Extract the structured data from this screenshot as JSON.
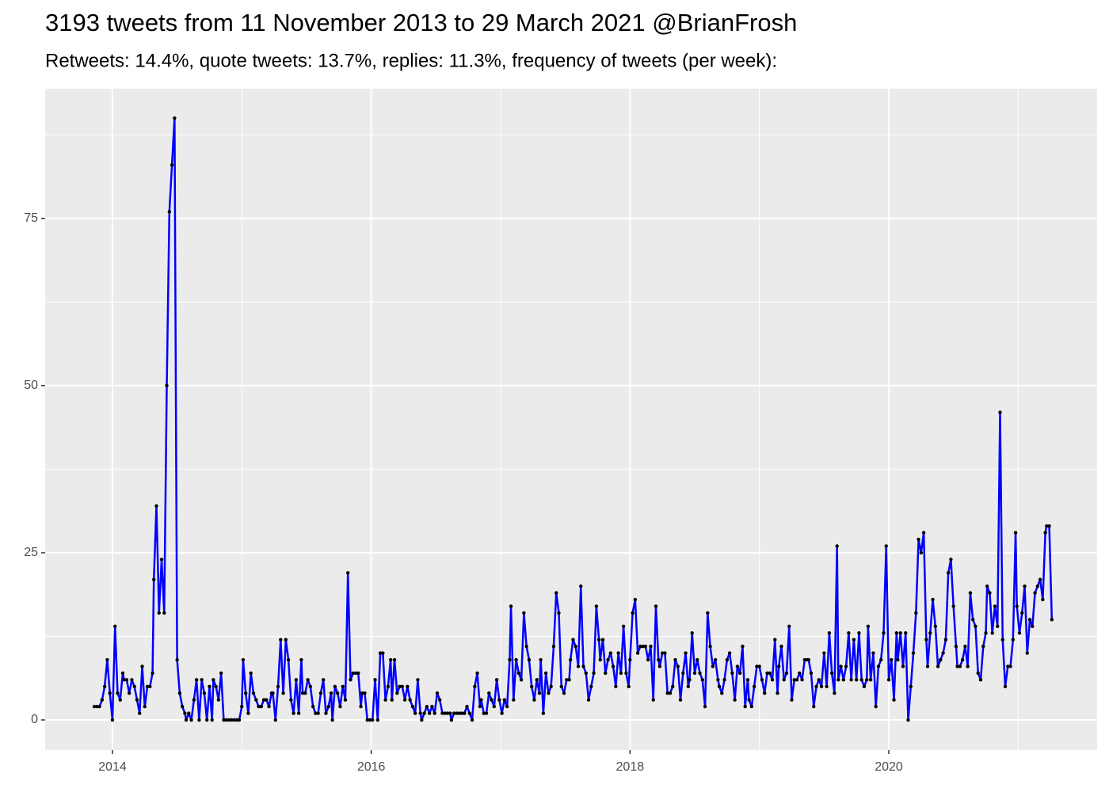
{
  "chart_data": {
    "type": "line",
    "title": "3193 tweets from 11 November 2013 to 29 March 2021 @BrianFrosh",
    "subtitle": "Retweets: 14.4%, quote tweets: 13.7%, replies: 11.3%, frequency of tweets (per week):",
    "color": "#0000ff",
    "point_color": "#000000",
    "grid": true,
    "xlim": [
      2013.48,
      2021.61
    ],
    "ylim": [
      -4.5,
      94.4
    ],
    "xticks": [
      2014,
      2016,
      2018,
      2020
    ],
    "yticks": [
      0,
      25,
      50,
      75
    ],
    "minor_xticks": [
      2015,
      2017,
      2019,
      2021
    ],
    "minor_yticks": [
      12.5,
      37.5,
      62.5,
      87.5
    ],
    "x": [
      2013.86,
      2013.88,
      2013.9,
      2013.92,
      2013.94,
      2013.96,
      2013.98,
      2014.0,
      2014.02,
      2014.04,
      2014.06,
      2014.08,
      2014.09,
      2014.11,
      2014.13,
      2014.15,
      2014.17,
      2014.19,
      2014.21,
      2014.23,
      2014.25,
      2014.27,
      2014.29,
      2014.31,
      2014.32,
      2014.34,
      2014.36,
      2014.38,
      2014.4,
      2014.42,
      2014.44,
      2014.46,
      2014.48,
      2014.5,
      2014.52,
      2014.54,
      2014.56,
      2014.57,
      2014.59,
      2014.61,
      2014.63,
      2014.65,
      2014.67,
      2014.69,
      2014.71,
      2014.73,
      2014.75,
      2014.77,
      2014.78,
      2014.8,
      2014.82,
      2014.84,
      2014.86,
      2014.88,
      2014.9,
      2014.92,
      2014.94,
      2014.96,
      2014.98,
      2015.0,
      2015.01,
      2015.03,
      2015.05,
      2015.07,
      2015.09,
      2015.11,
      2015.13,
      2015.15,
      2015.17,
      2015.19,
      2015.21,
      2015.23,
      2015.24,
      2015.26,
      2015.28,
      2015.3,
      2015.32,
      2015.34,
      2015.36,
      2015.38,
      2015.4,
      2015.42,
      2015.44,
      2015.46,
      2015.47,
      2015.49,
      2015.51,
      2015.53,
      2015.55,
      2015.57,
      2015.59,
      2015.61,
      2015.63,
      2015.65,
      2015.67,
      2015.69,
      2015.7,
      2015.72,
      2015.74,
      2015.76,
      2015.78,
      2015.8,
      2015.82,
      2015.84,
      2015.86,
      2015.88,
      2015.9,
      2015.92,
      2015.93,
      2015.95,
      2015.97,
      2015.99,
      2016.01,
      2016.03,
      2016.05,
      2016.07,
      2016.09,
      2016.11,
      2016.13,
      2016.15,
      2016.16,
      2016.18,
      2016.2,
      2016.22,
      2016.24,
      2016.26,
      2016.28,
      2016.3,
      2016.32,
      2016.34,
      2016.36,
      2016.38,
      2016.39,
      2016.41,
      2016.43,
      2016.45,
      2016.47,
      2016.49,
      2016.51,
      2016.53,
      2016.55,
      2016.57,
      2016.59,
      2016.61,
      2016.62,
      2016.64,
      2016.66,
      2016.68,
      2016.7,
      2016.72,
      2016.74,
      2016.76,
      2016.78,
      2016.8,
      2016.82,
      2016.84,
      2016.85,
      2016.87,
      2016.89,
      2016.91,
      2016.93,
      2016.95,
      2016.97,
      2016.99,
      2017.01,
      2017.03,
      2017.05,
      2017.07,
      2017.08,
      2017.1,
      2017.12,
      2017.14,
      2017.16,
      2017.18,
      2017.2,
      2017.22,
      2017.24,
      2017.26,
      2017.28,
      2017.3,
      2017.31,
      2017.33,
      2017.35,
      2017.37,
      2017.39,
      2017.41,
      2017.43,
      2017.45,
      2017.47,
      2017.49,
      2017.51,
      2017.53,
      2017.54,
      2017.56,
      2017.58,
      2017.6,
      2017.62,
      2017.64,
      2017.66,
      2017.68,
      2017.7,
      2017.72,
      2017.74,
      2017.76,
      2017.77,
      2017.79,
      2017.81,
      2017.83,
      2017.85,
      2017.87,
      2017.89,
      2017.91,
      2017.93,
      2017.95,
      2017.97,
      2017.99,
      2018.0,
      2018.02,
      2018.04,
      2018.06,
      2018.08,
      2018.1,
      2018.12,
      2018.14,
      2018.16,
      2018.18,
      2018.2,
      2018.22,
      2018.23,
      2018.25,
      2018.27,
      2018.29,
      2018.31,
      2018.33,
      2018.35,
      2018.37,
      2018.39,
      2018.41,
      2018.43,
      2018.45,
      2018.46,
      2018.48,
      2018.5,
      2018.52,
      2018.54,
      2018.56,
      2018.58,
      2018.6,
      2018.62,
      2018.64,
      2018.66,
      2018.68,
      2018.69,
      2018.71,
      2018.73,
      2018.75,
      2018.77,
      2018.79,
      2018.81,
      2018.83,
      2018.85,
      2018.87,
      2018.89,
      2018.91,
      2018.92,
      2018.94,
      2018.96,
      2018.98,
      2019.0,
      2019.02,
      2019.04,
      2019.06,
      2019.08,
      2019.1,
      2019.12,
      2019.14,
      2019.15,
      2019.17,
      2019.19,
      2019.21,
      2019.23,
      2019.25,
      2019.27,
      2019.29,
      2019.31,
      2019.33,
      2019.35,
      2019.37,
      2019.38,
      2019.4,
      2019.42,
      2019.44,
      2019.46,
      2019.48,
      2019.5,
      2019.52,
      2019.54,
      2019.56,
      2019.58,
      2019.6,
      2019.61,
      2019.63,
      2019.65,
      2019.67,
      2019.69,
      2019.71,
      2019.73,
      2019.75,
      2019.77,
      2019.79,
      2019.81,
      2019.83,
      2019.84,
      2019.86,
      2019.88,
      2019.9,
      2019.92,
      2019.94,
      2019.96,
      2019.98,
      2020.0,
      2020.02,
      2020.04,
      2020.06,
      2020.07,
      2020.09,
      2020.11,
      2020.13,
      2020.15,
      2020.17,
      2020.19,
      2020.21,
      2020.23,
      2020.25,
      2020.27,
      2020.29,
      2020.3,
      2020.32,
      2020.34,
      2020.36,
      2020.38,
      2020.4,
      2020.42,
      2020.44,
      2020.46,
      2020.48,
      2020.5,
      2020.52,
      2020.53,
      2020.55,
      2020.57,
      2020.59,
      2020.61,
      2020.63,
      2020.65,
      2020.67,
      2020.69,
      2020.71,
      2020.73,
      2020.75,
      2020.76,
      2020.78,
      2020.8,
      2020.82,
      2020.84,
      2020.86,
      2020.88,
      2020.9,
      2020.92,
      2020.94,
      2020.96,
      2020.98,
      2020.99,
      2021.01,
      2021.03,
      2021.05,
      2021.07,
      2021.09,
      2021.11,
      2021.13,
      2021.15,
      2021.17,
      2021.19,
      2021.21,
      2021.22,
      2021.24,
      2021.26
    ],
    "values": [
      2,
      2,
      2,
      3,
      5,
      9,
      4,
      0,
      14,
      4,
      3,
      7,
      6,
      6,
      4,
      6,
      5,
      3,
      1,
      8,
      2,
      5,
      5,
      7,
      21,
      32,
      16,
      24,
      16,
      50,
      76,
      83,
      90,
      9,
      4,
      2,
      1,
      0,
      1,
      0,
      3,
      6,
      0,
      6,
      4,
      0,
      5,
      0,
      6,
      5,
      3,
      7,
      0,
      0,
      0,
      0,
      0,
      0,
      0,
      2,
      9,
      4,
      1,
      7,
      4,
      3,
      2,
      2,
      3,
      3,
      2,
      4,
      4,
      0,
      5,
      12,
      4,
      12,
      9,
      3,
      1,
      6,
      1,
      9,
      4,
      4,
      6,
      5,
      2,
      1,
      1,
      4,
      6,
      1,
      2,
      4,
      0,
      5,
      4,
      2,
      5,
      3,
      22,
      6,
      7,
      7,
      7,
      2,
      4,
      4,
      0,
      0,
      0,
      6,
      0,
      10,
      10,
      3,
      5,
      9,
      3,
      9,
      4,
      5,
      5,
      3,
      5,
      3,
      2,
      1,
      6,
      1,
      0,
      1,
      2,
      1,
      2,
      1,
      4,
      3,
      1,
      1,
      1,
      1,
      0,
      1,
      1,
      1,
      1,
      1,
      2,
      1,
      0,
      5,
      7,
      2,
      3,
      1,
      1,
      4,
      3,
      2,
      6,
      3,
      1,
      3,
      2,
      9,
      17,
      3,
      9,
      7,
      6,
      16,
      11,
      9,
      5,
      3,
      6,
      4,
      9,
      1,
      7,
      4,
      5,
      11,
      19,
      16,
      5,
      4,
      6,
      6,
      9,
      12,
      11,
      8,
      20,
      8,
      7,
      3,
      5,
      7,
      17,
      12,
      9,
      12,
      7,
      9,
      10,
      8,
      5,
      10,
      7,
      14,
      7,
      5,
      9,
      16,
      18,
      10,
      11,
      11,
      11,
      9,
      11,
      3,
      17,
      9,
      8,
      10,
      10,
      4,
      4,
      5,
      9,
      8,
      3,
      7,
      10,
      5,
      6,
      13,
      7,
      9,
      7,
      6,
      2,
      16,
      11,
      8,
      9,
      6,
      5,
      4,
      6,
      9,
      10,
      7,
      3,
      8,
      7,
      11,
      2,
      6,
      3,
      2,
      5,
      8,
      8,
      6,
      4,
      7,
      7,
      6,
      12,
      4,
      8,
      11,
      6,
      7,
      14,
      3,
      6,
      6,
      7,
      6,
      9,
      9,
      9,
      7,
      2,
      5,
      6,
      5,
      10,
      5,
      13,
      7,
      4,
      26,
      6,
      8,
      6,
      8,
      13,
      6,
      12,
      6,
      13,
      6,
      5,
      6,
      14,
      6,
      10,
      2,
      8,
      9,
      13,
      26,
      6,
      9,
      3,
      13,
      9,
      13,
      8,
      13,
      0,
      5,
      10,
      16,
      27,
      25,
      28,
      12,
      8,
      13,
      18,
      14,
      8,
      9,
      10,
      12,
      22,
      24,
      17,
      11,
      8,
      8,
      9,
      11,
      8,
      19,
      15,
      14,
      7,
      6,
      11,
      13,
      20,
      19,
      13,
      17,
      14,
      46,
      12,
      5,
      8,
      8,
      12,
      28,
      17,
      13,
      16,
      20,
      10,
      15,
      14,
      19,
      20,
      21,
      18,
      28,
      29,
      29,
      15
    ]
  }
}
